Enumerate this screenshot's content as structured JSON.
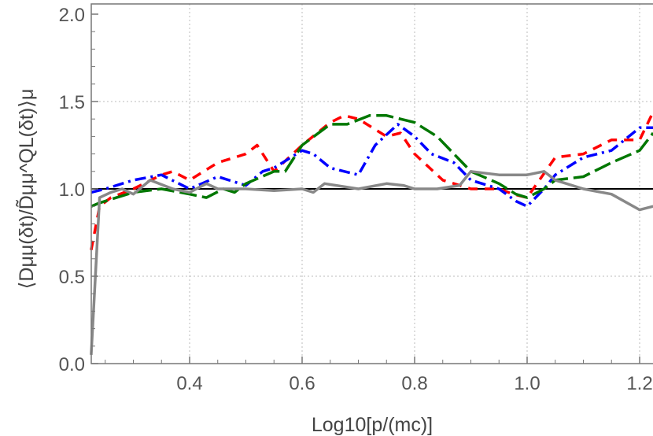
{
  "chart_data": {
    "type": "line",
    "title": "",
    "xlabel": "Log10[p/(mc)]",
    "ylabel": "⟨Dμμ(δt)/D̃μμ^QL(δt)⟩μ",
    "xlim": [
      0.225,
      1.224
    ],
    "ylim": [
      0,
      2.0
    ],
    "grid": true,
    "xticks": [
      0.4,
      0.6,
      0.8,
      1.0,
      1.2
    ],
    "xtick_labels": [
      "0.4",
      "0.6",
      "0.8",
      "1.0",
      "1.2"
    ],
    "yticks": [
      0,
      0.5,
      1.0,
      1.5,
      2.0
    ],
    "ytick_labels": [
      "0.0",
      "0.5",
      "1.0",
      "1.5",
      "2.0"
    ],
    "reference_line": 1.0,
    "series": [
      {
        "name": "red-dashed",
        "color": "#ff0000",
        "dash": "12,9",
        "x": [
          0.225,
          0.24,
          0.26,
          0.3,
          0.35,
          0.37,
          0.4,
          0.45,
          0.5,
          0.52,
          0.55,
          0.6,
          0.65,
          0.675,
          0.7,
          0.75,
          0.775,
          0.8,
          0.85,
          0.9,
          0.95,
          0.975,
          1.0,
          1.05,
          1.1,
          1.15,
          1.2,
          1.224
        ],
        "y": [
          0.65,
          0.9,
          0.95,
          1.0,
          1.08,
          1.1,
          1.05,
          1.15,
          1.2,
          1.25,
          1.1,
          1.25,
          1.38,
          1.42,
          1.4,
          1.3,
          1.32,
          1.2,
          1.05,
          1.0,
          1.0,
          0.97,
          0.95,
          1.18,
          1.2,
          1.28,
          1.28,
          1.44
        ]
      },
      {
        "name": "blue-dashdot",
        "color": "#0000ff",
        "dash": "14,6,3,6",
        "x": [
          0.225,
          0.25,
          0.3,
          0.35,
          0.4,
          0.45,
          0.5,
          0.53,
          0.55,
          0.6,
          0.62,
          0.65,
          0.7,
          0.73,
          0.77,
          0.8,
          0.83,
          0.87,
          0.9,
          0.95,
          0.98,
          1.0,
          1.03,
          1.05,
          1.1,
          1.15,
          1.2,
          1.224
        ],
        "y": [
          0.98,
          1.0,
          1.05,
          1.08,
          1.0,
          1.07,
          1.02,
          1.1,
          1.12,
          1.22,
          1.2,
          1.12,
          1.08,
          1.25,
          1.37,
          1.3,
          1.2,
          1.15,
          1.05,
          1.0,
          0.93,
          0.9,
          1.0,
          1.08,
          1.18,
          1.22,
          1.35,
          1.35
        ]
      },
      {
        "name": "green-longdash",
        "color": "#007700",
        "dash": "22,7",
        "x": [
          0.225,
          0.24,
          0.3,
          0.35,
          0.4,
          0.43,
          0.46,
          0.48,
          0.5,
          0.55,
          0.57,
          0.6,
          0.65,
          0.68,
          0.72,
          0.75,
          0.8,
          0.84,
          0.87,
          0.9,
          0.95,
          0.98,
          1.0,
          1.03,
          1.05,
          1.1,
          1.15,
          1.2,
          1.224
        ],
        "y": [
          0.9,
          0.92,
          0.98,
          1.0,
          0.97,
          0.95,
          1.0,
          0.98,
          1.03,
          1.1,
          1.1,
          1.25,
          1.37,
          1.37,
          1.42,
          1.42,
          1.38,
          1.3,
          1.2,
          1.1,
          1.03,
          0.97,
          0.95,
          1.0,
          1.05,
          1.07,
          1.15,
          1.22,
          1.32
        ]
      },
      {
        "name": "gray-solid",
        "color": "#888888",
        "dash": "",
        "x": [
          0.225,
          0.24,
          0.26,
          0.28,
          0.3,
          0.33,
          0.37,
          0.4,
          0.43,
          0.45,
          0.5,
          0.55,
          0.6,
          0.62,
          0.64,
          0.7,
          0.75,
          0.78,
          0.8,
          0.84,
          0.88,
          0.9,
          0.95,
          1.0,
          1.03,
          1.05,
          1.1,
          1.15,
          1.2,
          1.224
        ],
        "y": [
          0.05,
          0.95,
          0.98,
          1.0,
          0.97,
          1.05,
          1.0,
          0.98,
          1.03,
          1.0,
          1.0,
          0.99,
          1.0,
          0.98,
          1.03,
          1.0,
          1.03,
          1.02,
          1.0,
          1.0,
          1.02,
          1.1,
          1.08,
          1.08,
          1.1,
          1.05,
          1.0,
          0.97,
          0.88,
          0.9
        ]
      }
    ]
  }
}
